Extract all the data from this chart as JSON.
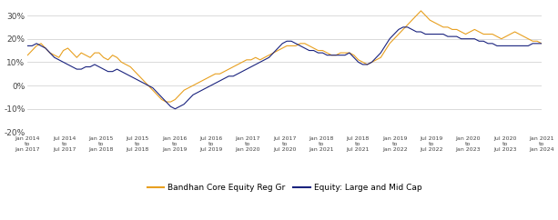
{
  "title": "",
  "xlabel": "",
  "ylabel": "",
  "ylim": [
    -20,
    35
  ],
  "yticks": [
    -20,
    -10,
    0,
    10,
    20,
    30
  ],
  "ytick_labels": [
    "-20%",
    "-10%",
    "0%",
    "10%",
    "20%",
    "30%"
  ],
  "x_labels": [
    "Jan 2014\nto\nJan 2017",
    "Jul 2014\nto\nJul 2017",
    "Jan 2015\nto\nJan 2018",
    "Jul 2015\nto\nJul 2018",
    "Jan 2016\nto\nJan 2019",
    "Jul 2016\nto\nJul 2019",
    "Jan 2017\nto\nJan 2020",
    "Jul 2017\nto\nJul 2020",
    "Jan 2018\nto\nJan 2021",
    "Jul 2018\nto\nJul 2021",
    "Jan 2019\nto\nJan 2022",
    "Jul 2019\nto\nJul 2022",
    "Jan 2020\nto\nJan 2023",
    "Jul 2020\nto\nJul 2023",
    "Jan 2021\nto\nJan 2024"
  ],
  "fund_color": "#E8A020",
  "benchmark_color": "#1A237E",
  "fund_label": "Bandhan Core Equity Reg Gr",
  "benchmark_label": "Equity: Large and Mid Cap",
  "background_color": "#ffffff",
  "grid_color": "#cccccc",
  "fund_data": [
    13,
    15,
    17,
    18,
    16,
    14,
    13,
    12,
    15,
    16,
    14,
    12,
    14,
    13,
    12,
    14,
    14,
    12,
    11,
    13,
    12,
    10,
    9,
    8,
    6,
    4,
    2,
    0,
    -2,
    -4,
    -6,
    -7,
    -7,
    -6,
    -4,
    -2,
    -1,
    0,
    1,
    2,
    3,
    4,
    5,
    5,
    6,
    7,
    8,
    9,
    10,
    11,
    11,
    12,
    11,
    12,
    13,
    14,
    15,
    16,
    17,
    17,
    17,
    18,
    18,
    17,
    16,
    15,
    15,
    14,
    13,
    13,
    14,
    14,
    14,
    13,
    11,
    10,
    9,
    10,
    11,
    12,
    15,
    18,
    20,
    22,
    24,
    26,
    28,
    30,
    32,
    30,
    28,
    27,
    26,
    25,
    25,
    24,
    24,
    23,
    22,
    23,
    24,
    23,
    22,
    22,
    22,
    21,
    20,
    21,
    22,
    23,
    22,
    21,
    20,
    19,
    19,
    18
  ],
  "benchmark_data": [
    17,
    17,
    18,
    17,
    16,
    14,
    12,
    11,
    10,
    9,
    8,
    7,
    7,
    8,
    8,
    9,
    8,
    7,
    6,
    6,
    7,
    6,
    5,
    4,
    3,
    2,
    1,
    0,
    -1,
    -3,
    -5,
    -7,
    -9,
    -10,
    -9,
    -8,
    -6,
    -4,
    -3,
    -2,
    -1,
    0,
    1,
    2,
    3,
    4,
    4,
    5,
    6,
    7,
    8,
    9,
    10,
    11,
    12,
    14,
    16,
    18,
    19,
    19,
    18,
    17,
    16,
    15,
    15,
    14,
    14,
    13,
    13,
    13,
    13,
    13,
    14,
    12,
    10,
    9,
    9,
    10,
    12,
    14,
    17,
    20,
    22,
    24,
    25,
    25,
    24,
    23,
    23,
    22,
    22,
    22,
    22,
    22,
    21,
    21,
    21,
    20,
    20,
    20,
    20,
    19,
    19,
    18,
    18,
    17,
    17,
    17,
    17,
    17,
    17,
    17,
    17,
    18,
    18,
    18
  ]
}
